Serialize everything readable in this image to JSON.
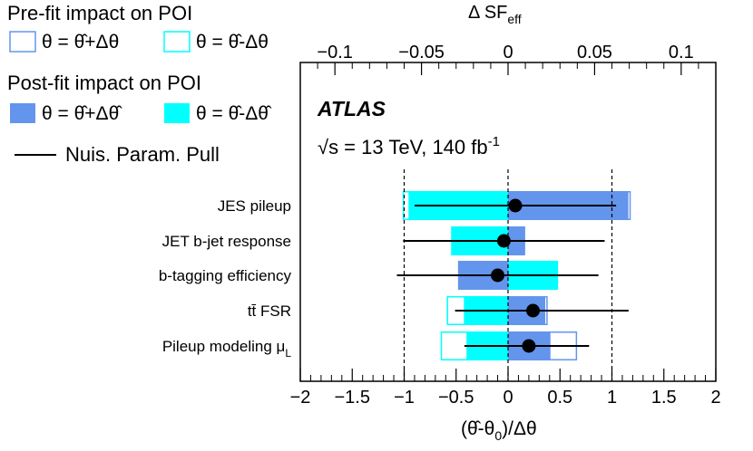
{
  "chart_data": {
    "type": "ranking",
    "top_axis": {
      "label": "Δ SF",
      "label_sub": "eff",
      "range": [
        -0.12,
        0.12
      ],
      "ticks": [
        -0.1,
        -0.05,
        0,
        0.05,
        0.1
      ],
      "tick_labels": [
        "−0.1",
        "−0.05",
        "0",
        "0.05",
        "0.1"
      ]
    },
    "bottom_axis": {
      "label": "(θ̂-θ",
      "label_sub": "0",
      "label_end": ")/Δθ",
      "range": [
        -2,
        2
      ],
      "ticks": [
        -2,
        -1.5,
        -1,
        -0.5,
        0,
        0.5,
        1,
        1.5,
        2
      ],
      "tick_labels": [
        "−2",
        "−1.5",
        "−1",
        "−0.5",
        "0",
        "0.5",
        "1",
        "1.5",
        "2"
      ]
    },
    "reference_lines": [
      -1,
      0,
      1
    ],
    "legend": {
      "prefit_title": "Pre-fit impact on POI",
      "prefit_up": "θ = θ̂+Δθ",
      "prefit_down": "θ = θ̂-Δθ",
      "postfit_title": "Post-fit impact on POI",
      "postfit_up": "θ = θ̂+Δθ̂",
      "postfit_down": "θ = θ̂-Δθ̂",
      "pull": "Nuis. Param. Pull"
    },
    "annotation": {
      "experiment": "ATLAS",
      "energy": "√s = 13 TeV, 140 fb",
      "energy_sup": "-1"
    },
    "parameters": [
      {
        "name": "JES pileup",
        "name_sub": "",
        "prefit_up": 0.0705,
        "prefit_down": -0.0605,
        "postfit_up": 0.0695,
        "postfit_down": -0.0575,
        "pull": 0.07,
        "pull_err_low": 0.97,
        "pull_err_high": 0.97
      },
      {
        "name": "JET b-jet response",
        "name_sub": "",
        "prefit_up": 0.0095,
        "prefit_down": -0.0325,
        "postfit_up": 0.0095,
        "postfit_down": -0.0325,
        "pull": -0.04,
        "pull_err_low": 0.97,
        "pull_err_high": 0.97
      },
      {
        "name": "b-tagging efficiency",
        "name_sub": "",
        "prefit_up": -0.0285,
        "prefit_down": 0.0285,
        "postfit_up": -0.0285,
        "postfit_down": 0.0285,
        "pull": -0.1,
        "pull_err_low": 0.97,
        "pull_err_high": 0.97
      },
      {
        "name": "tt̄ FSR",
        "name_sub": "",
        "prefit_up": 0.0225,
        "prefit_down": -0.035,
        "postfit_up": 0.0215,
        "postfit_down": -0.0255,
        "pull": 0.24,
        "pull_err_low": 0.75,
        "pull_err_high": 0.92
      },
      {
        "name": "Pileup modeling μ",
        "name_sub": "L",
        "prefit_up": 0.0395,
        "prefit_down": -0.0385,
        "postfit_up": 0.0245,
        "postfit_down": -0.024,
        "pull": 0.2,
        "pull_err_low": 0.62,
        "pull_err_high": 0.58
      }
    ],
    "colors": {
      "postfit_up": "#6495ed",
      "postfit_down": "#00ffff",
      "prefit_up": "#6495ed",
      "prefit_down": "#00ffff",
      "pull": "#000000"
    }
  }
}
